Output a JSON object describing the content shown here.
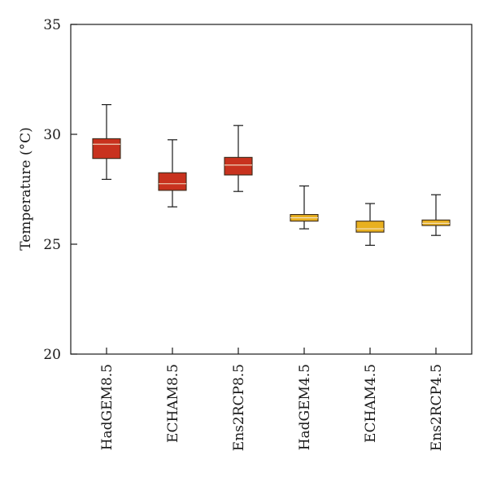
{
  "chart_data": {
    "type": "boxplot",
    "ylabel": "Temperature (°C)",
    "ylim": [
      20,
      35
    ],
    "yticks": [
      20,
      25,
      30,
      35
    ],
    "categories": [
      "HadGEM8.5",
      "ECHAM8.5",
      "Ens2RCP8.5",
      "HadGEM4.5",
      "ECHAM4.5",
      "Ens2RCP4.5"
    ],
    "boxes": [
      {
        "category": "HadGEM8.5",
        "min": 27.95,
        "q1": 28.9,
        "median": 29.55,
        "q3": 29.8,
        "max": 31.35,
        "color": "#c8321e"
      },
      {
        "category": "ECHAM8.5",
        "min": 26.7,
        "q1": 27.45,
        "median": 27.75,
        "q3": 28.25,
        "max": 29.75,
        "color": "#c8321e"
      },
      {
        "category": "Ens2RCP8.5",
        "min": 27.4,
        "q1": 28.15,
        "median": 28.6,
        "q3": 28.95,
        "max": 30.4,
        "color": "#c8321e"
      },
      {
        "category": "HadGEM4.5",
        "min": 25.7,
        "q1": 26.05,
        "median": 26.2,
        "q3": 26.35,
        "max": 27.65,
        "color": "#e8b020"
      },
      {
        "category": "ECHAM4.5",
        "min": 24.95,
        "q1": 25.55,
        "median": 25.7,
        "q3": 26.05,
        "max": 26.85,
        "color": "#e8b020"
      },
      {
        "category": "Ens2RCP4.5",
        "min": 25.4,
        "q1": 25.85,
        "median": 25.95,
        "q3": 26.1,
        "max": 27.25,
        "color": "#e8b020"
      }
    ]
  }
}
